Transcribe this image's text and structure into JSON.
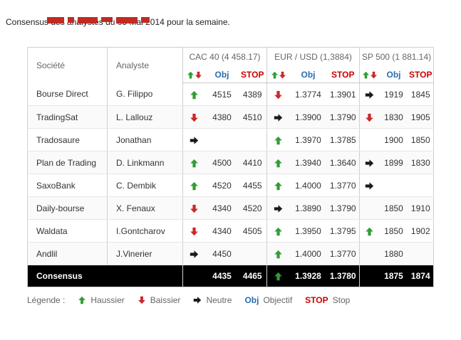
{
  "page": {
    "intro": "Consensus des analystes du 05 Mai 2014 pour la semaine."
  },
  "colors": {
    "up": "#2f9e33",
    "down": "#cc2727",
    "neutral": "#1a1a1a",
    "obj": "#2a6db0",
    "stop": "#cc0000"
  },
  "table": {
    "col_headers": {
      "societe": "Société",
      "analyste": "Analyste"
    },
    "groups": [
      {
        "title": "CAC 40 (4 458.17)"
      },
      {
        "title": "EUR / USD (1,3884)"
      },
      {
        "title": "SP 500 (1 881.14)"
      }
    ],
    "subheader": {
      "obj": "Obj",
      "stop": "STOP"
    },
    "rows": [
      {
        "societe": "Bourse Direct",
        "analyste": "G. Filippo",
        "cells": [
          {
            "dir": "up",
            "obj": "4515",
            "stop": "4389"
          },
          {
            "dir": "down",
            "obj": "1.3774",
            "stop": "1.3901"
          },
          {
            "dir": "neutral",
            "obj": "1919",
            "stop": "1845"
          }
        ]
      },
      {
        "societe": "TradingSat",
        "analyste": "L. Lallouz",
        "cells": [
          {
            "dir": "down",
            "obj": "4380",
            "stop": "4510"
          },
          {
            "dir": "neutral",
            "obj": "1.3900",
            "stop": "1.3790"
          },
          {
            "dir": "down",
            "obj": "1830",
            "stop": "1905"
          }
        ]
      },
      {
        "societe": "Tradosaure",
        "analyste": "Jonathan",
        "cells": [
          {
            "dir": "neutral",
            "obj": "",
            "stop": ""
          },
          {
            "dir": "up",
            "obj": "1.3970",
            "stop": "1.3785"
          },
          {
            "dir": null,
            "obj": "1900",
            "stop": "1850"
          }
        ]
      },
      {
        "societe": "Plan de Trading",
        "analyste": "D. Linkmann",
        "cells": [
          {
            "dir": "up",
            "obj": "4500",
            "stop": "4410"
          },
          {
            "dir": "up",
            "obj": "1.3940",
            "stop": "1.3640"
          },
          {
            "dir": "neutral",
            "obj": "1899",
            "stop": "1830"
          }
        ]
      },
      {
        "societe": "SaxoBank",
        "analyste": "C. Dembik",
        "cells": [
          {
            "dir": "up",
            "obj": "4520",
            "stop": "4455"
          },
          {
            "dir": "up",
            "obj": "1.4000",
            "stop": "1.3770"
          },
          {
            "dir": "neutral",
            "obj": "",
            "stop": ""
          }
        ]
      },
      {
        "societe": "Daily-bourse",
        "analyste": "X. Fenaux",
        "cells": [
          {
            "dir": "down",
            "obj": "4340",
            "stop": "4520"
          },
          {
            "dir": "neutral",
            "obj": "1.3890",
            "stop": "1.3790"
          },
          {
            "dir": null,
            "obj": "1850",
            "stop": "1910"
          }
        ]
      },
      {
        "societe": "Waldata",
        "analyste": "I.Gontcharov",
        "cells": [
          {
            "dir": "down",
            "obj": "4340",
            "stop": "4505"
          },
          {
            "dir": "up",
            "obj": "1.3950",
            "stop": "1.3795"
          },
          {
            "dir": "up",
            "obj": "1850",
            "stop": "1902"
          }
        ]
      },
      {
        "societe": "Andlil",
        "analyste": "J.Vinerier",
        "cells": [
          {
            "dir": "neutral",
            "obj": "4450",
            "stop": ""
          },
          {
            "dir": "up",
            "obj": "1.4000",
            "stop": "1.3770"
          },
          {
            "dir": null,
            "obj": "1880",
            "stop": ""
          }
        ]
      }
    ],
    "consensus": {
      "label": "Consensus",
      "cells": [
        {
          "dir": null,
          "obj": "4435",
          "stop": "4465"
        },
        {
          "dir": "up",
          "obj": "1.3928",
          "stop": "1.3780"
        },
        {
          "dir": null,
          "obj": "1875",
          "stop": "1874"
        }
      ]
    }
  },
  "legend": {
    "label": "Légende :",
    "items": [
      {
        "type": "up",
        "label": "Haussier"
      },
      {
        "type": "down",
        "label": "Baissier"
      },
      {
        "type": "neutral",
        "label": "Neutre"
      },
      {
        "type": "obj",
        "token": "Obj",
        "label": "Objectif"
      },
      {
        "type": "stop",
        "token": "STOP",
        "label": "Stop"
      }
    ]
  }
}
